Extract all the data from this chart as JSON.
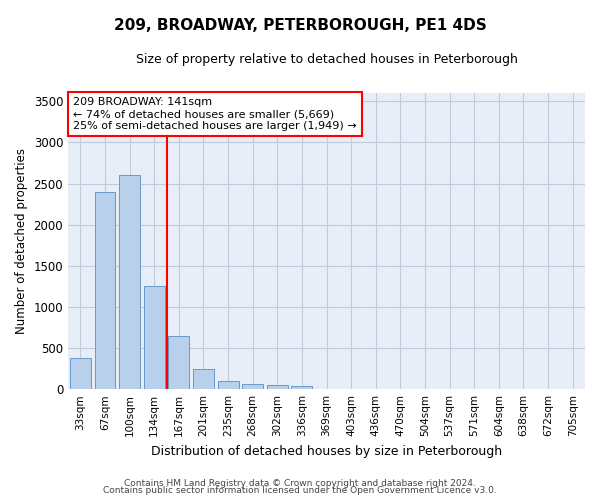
{
  "title": "209, BROADWAY, PETERBOROUGH, PE1 4DS",
  "subtitle": "Size of property relative to detached houses in Peterborough",
  "xlabel": "Distribution of detached houses by size in Peterborough",
  "ylabel": "Number of detached properties",
  "categories": [
    "33sqm",
    "67sqm",
    "100sqm",
    "134sqm",
    "167sqm",
    "201sqm",
    "235sqm",
    "268sqm",
    "302sqm",
    "336sqm",
    "369sqm",
    "403sqm",
    "436sqm",
    "470sqm",
    "504sqm",
    "537sqm",
    "571sqm",
    "604sqm",
    "638sqm",
    "672sqm",
    "705sqm"
  ],
  "values": [
    380,
    2400,
    2600,
    1250,
    650,
    250,
    100,
    60,
    55,
    40,
    5,
    0,
    0,
    0,
    0,
    0,
    0,
    0,
    0,
    0,
    0
  ],
  "bar_color": "#b8d0ea",
  "bar_edge_color": "#6699cc",
  "redline_x": 3.5,
  "annotation_line1": "209 BROADWAY: 141sqm",
  "annotation_line2": "← 74% of detached houses are smaller (5,669)",
  "annotation_line3": "25% of semi-detached houses are larger (1,949) →",
  "ylim": [
    0,
    3600
  ],
  "yticks": [
    0,
    500,
    1000,
    1500,
    2000,
    2500,
    3000,
    3500
  ],
  "footer_line1": "Contains HM Land Registry data © Crown copyright and database right 2024.",
  "footer_line2": "Contains public sector information licensed under the Open Government Licence v3.0.",
  "plot_bg_color": "#e8eef8",
  "fig_bg_color": "#ffffff",
  "grid_color": "#c0ccdd"
}
